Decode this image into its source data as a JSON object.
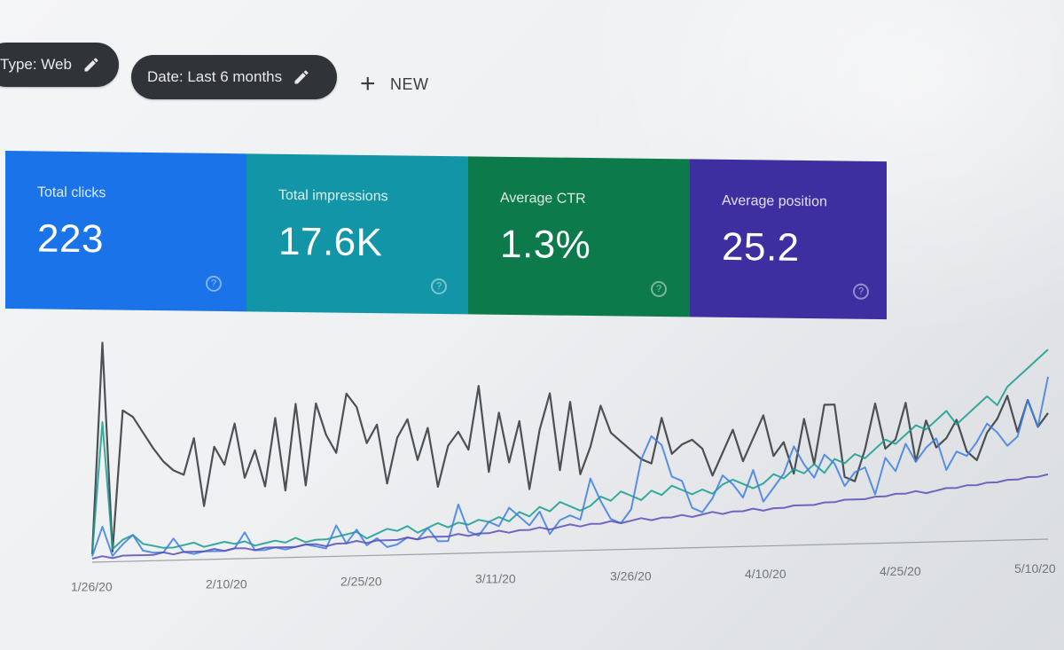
{
  "filters": {
    "type_chip": "Type: Web",
    "date_chip": "Date: Last 6 months",
    "new_label": "NEW"
  },
  "metrics": [
    {
      "title": "Total clicks",
      "value": "223",
      "color": "#1a73e8"
    },
    {
      "title": "Total impressions",
      "value": "17.6K",
      "color": "#1295a6"
    },
    {
      "title": "Average CTR",
      "value": "1.3%",
      "color": "#0d7a4c"
    },
    {
      "title": "Average position",
      "value": "25.2",
      "color": "#3d2fa0"
    }
  ],
  "chart_data": {
    "type": "line",
    "title": "",
    "xlabel": "",
    "ylabel": "",
    "x_tick_labels": [
      "1/26/20",
      "2/10/20",
      "2/25/20",
      "3/11/20",
      "3/26/20",
      "4/10/20",
      "4/25/20",
      "5/10/20"
    ],
    "grid": false,
    "series": [
      {
        "color": "#3b3f44",
        "values": [
          2,
          95,
          3,
          65,
          62,
          55,
          48,
          42,
          38,
          36,
          52,
          22,
          48,
          40,
          58,
          34,
          46,
          30,
          60,
          28,
          66,
          30,
          66,
          52,
          44,
          70,
          64,
          48,
          56,
          30,
          50,
          58,
          40,
          54,
          28,
          46,
          52,
          44,
          72,
          34,
          60,
          38,
          56,
          26,
          52,
          68,
          34,
          64,
          32,
          44,
          62,
          50,
          46,
          42,
          38,
          36,
          56,
          40,
          44,
          46,
          42,
          30,
          40,
          50,
          36,
          46,
          56,
          38,
          44,
          30,
          54,
          34,
          60,
          60,
          28,
          26,
          40,
          60,
          40,
          44,
          60,
          34,
          52,
          40,
          44,
          52,
          38,
          34,
          46,
          52,
          62,
          46,
          60,
          48,
          54
        ]
      },
      {
        "color": "#169d8e",
        "values": [
          2,
          60,
          4,
          8,
          10,
          6,
          5,
          4,
          4,
          5,
          6,
          4,
          5,
          6,
          5,
          6,
          4,
          5,
          6,
          5,
          7,
          5,
          6,
          6,
          7,
          8,
          9,
          6,
          8,
          10,
          9,
          11,
          8,
          10,
          12,
          10,
          12,
          11,
          13,
          12,
          14,
          12,
          16,
          14,
          18,
          16,
          20,
          18,
          16,
          18,
          22,
          20,
          24,
          22,
          20,
          24,
          22,
          26,
          24,
          22,
          24,
          22,
          26,
          28,
          26,
          24,
          26,
          30,
          28,
          32,
          30,
          34,
          30,
          36,
          34,
          38,
          36,
          40,
          44,
          42,
          46,
          50,
          48,
          52,
          56,
          50,
          54,
          58,
          62,
          58,
          66,
          70,
          74,
          78,
          82
        ]
      },
      {
        "color": "#3f7fe0",
        "values": [
          1,
          14,
          1,
          6,
          10,
          3,
          2,
          2,
          8,
          2,
          1,
          2,
          2,
          2,
          3,
          10,
          2,
          2,
          3,
          2,
          3,
          4,
          3,
          2,
          12,
          4,
          10,
          3,
          6,
          2,
          3,
          6,
          5,
          10,
          4,
          4,
          20,
          8,
          6,
          12,
          10,
          18,
          14,
          10,
          16,
          6,
          12,
          14,
          12,
          30,
          20,
          12,
          10,
          16,
          38,
          48,
          44,
          30,
          28,
          16,
          14,
          20,
          30,
          26,
          20,
          32,
          18,
          24,
          30,
          42,
          34,
          28,
          38,
          34,
          24,
          30,
          32,
          20,
          36,
          30,
          42,
          34,
          40,
          44,
          30,
          38,
          36,
          42,
          50,
          46,
          40,
          44,
          60,
          48,
          70
        ]
      },
      {
        "color": "#5a4fb8",
        "values": [
          0,
          1,
          0,
          1,
          1,
          1,
          1,
          2,
          1,
          2,
          2,
          2,
          3,
          2,
          3,
          3,
          2,
          3,
          3,
          3,
          3,
          4,
          4,
          3,
          4,
          4,
          5,
          4,
          5,
          5,
          5,
          6,
          5,
          6,
          6,
          6,
          7,
          6,
          7,
          7,
          8,
          7,
          8,
          8,
          9,
          8,
          9,
          10,
          9,
          10,
          10,
          11,
          10,
          11,
          12,
          11,
          12,
          12,
          13,
          12,
          13,
          14,
          13,
          14,
          14,
          15,
          14,
          15,
          15,
          16,
          16,
          16,
          17,
          17,
          18,
          18,
          18,
          19,
          19,
          20,
          20,
          21,
          20,
          21,
          22,
          22,
          23,
          23,
          24,
          24,
          25,
          25,
          26,
          26,
          27
        ]
      }
    ]
  }
}
